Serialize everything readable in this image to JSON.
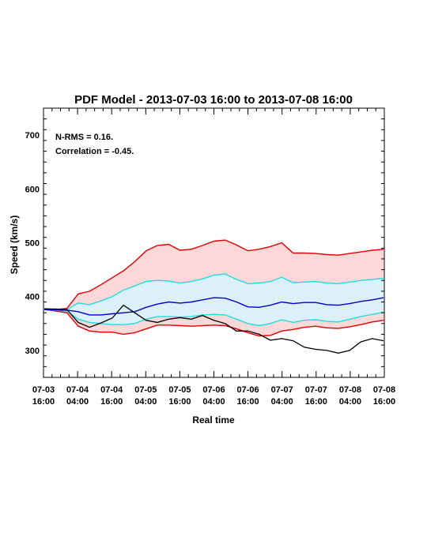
{
  "chart_data": {
    "type": "line",
    "title": "PDF Model - 2013-07-03 16:00 to 2013-07-08 16:00",
    "xlabel": "Real time",
    "ylabel": "Speed (km/s)",
    "xlim": [
      "2013-07-03 16:00",
      "2013-07-08 16:00"
    ],
    "ylim": [
      250,
      750
    ],
    "yticks": [
      300,
      400,
      500,
      600,
      700
    ],
    "xticks": [
      {
        "line1": "07-03",
        "line2": "16:00"
      },
      {
        "line1": "07-04",
        "line2": "04:00"
      },
      {
        "line1": "07-04",
        "line2": "16:00"
      },
      {
        "line1": "07-05",
        "line2": "04:00"
      },
      {
        "line1": "07-05",
        "line2": "16:00"
      },
      {
        "line1": "07-06",
        "line2": "04:00"
      },
      {
        "line1": "07-06",
        "line2": "16:00"
      },
      {
        "line1": "07-07",
        "line2": "04:00"
      },
      {
        "line1": "07-07",
        "line2": "16:00"
      },
      {
        "line1": "07-08",
        "line2": "04:00"
      },
      {
        "line1": "07-08",
        "line2": "16:00"
      }
    ],
    "annotations": [
      "N-RMS = 0.16.",
      "Correlation = -0.45."
    ],
    "colors": {
      "outer": "#dd0000",
      "outer_fill": "#fcd8d8",
      "inner": "#22dddd",
      "inner_fill": "#dcf0fa",
      "median": "#0000cc",
      "observed": "#000000"
    },
    "x": [
      "07-03 16:00",
      "07-03 20:00",
      "07-04 00:00",
      "07-04 04:00",
      "07-04 08:00",
      "07-04 12:00",
      "07-04 16:00",
      "07-04 20:00",
      "07-05 00:00",
      "07-05 04:00",
      "07-05 08:00",
      "07-05 12:00",
      "07-05 16:00",
      "07-05 20:00",
      "07-06 00:00",
      "07-06 04:00",
      "07-06 08:00",
      "07-06 12:00",
      "07-06 16:00",
      "07-06 20:00",
      "07-07 00:00",
      "07-07 04:00",
      "07-07 08:00",
      "07-07 12:00",
      "07-07 16:00",
      "07-07 20:00",
      "07-08 00:00",
      "07-08 04:00",
      "07-08 08:00",
      "07-08 12:00",
      "07-08 16:00"
    ],
    "bands": {
      "upper_outer": [
        378,
        376,
        378,
        405,
        410,
        422,
        435,
        448,
        465,
        485,
        495,
        497,
        486,
        488,
        495,
        503,
        505,
        496,
        485,
        488,
        493,
        500,
        481,
        481,
        480,
        478,
        477,
        480,
        483,
        486,
        488
      ],
      "upper_inner": [
        378,
        375,
        376,
        388,
        385,
        392,
        400,
        412,
        420,
        428,
        430,
        429,
        425,
        428,
        433,
        440,
        442,
        432,
        424,
        425,
        428,
        436,
        426,
        427,
        428,
        425,
        424,
        427,
        430,
        432,
        434
      ],
      "median": [
        376,
        375,
        375,
        372,
        366,
        366,
        368,
        370,
        372,
        380,
        386,
        390,
        388,
        390,
        394,
        398,
        397,
        390,
        381,
        380,
        384,
        390,
        387,
        389,
        389,
        385,
        384,
        387,
        391,
        394,
        398
      ],
      "lower_inner": [
        376,
        374,
        373,
        358,
        352,
        350,
        348,
        348,
        350,
        358,
        363,
        363,
        362,
        363,
        366,
        367,
        366,
        358,
        350,
        346,
        350,
        357,
        352,
        356,
        357,
        354,
        353,
        358,
        363,
        367,
        371
      ],
      "lower_outer": [
        376,
        373,
        370,
        345,
        336,
        334,
        334,
        330,
        333,
        340,
        347,
        347,
        346,
        345,
        346,
        347,
        346,
        340,
        333,
        327,
        328,
        336,
        339,
        343,
        345,
        342,
        341,
        344,
        348,
        353,
        356
      ]
    },
    "observed": [
      377,
      377,
      376,
      352,
      343,
      351,
      360,
      384,
      370,
      356,
      352,
      358,
      361,
      358,
      365,
      356,
      350,
      336,
      336,
      330,
      319,
      322,
      318,
      306,
      302,
      300,
      295,
      300,
      316,
      322,
      318
    ]
  }
}
